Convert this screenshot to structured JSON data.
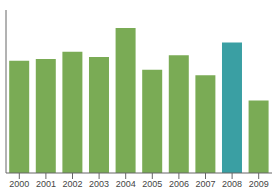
{
  "chart_data": {
    "type": "bar",
    "categories": [
      "2000",
      "2001",
      "2002",
      "2003",
      "2004",
      "2005",
      "2006",
      "2007",
      "2008",
      "2009"
    ],
    "values": [
      62,
      63,
      67,
      64,
      80,
      57,
      65,
      54,
      72,
      40
    ],
    "colors": [
      "#7aab55",
      "#7aab55",
      "#7aab55",
      "#7aab55",
      "#7aab55",
      "#7aab55",
      "#7aab55",
      "#7aab55",
      "#3a9fa3",
      "#7aab55"
    ],
    "ylim": [
      0,
      90
    ],
    "grid": false,
    "tick_labels": "x"
  }
}
